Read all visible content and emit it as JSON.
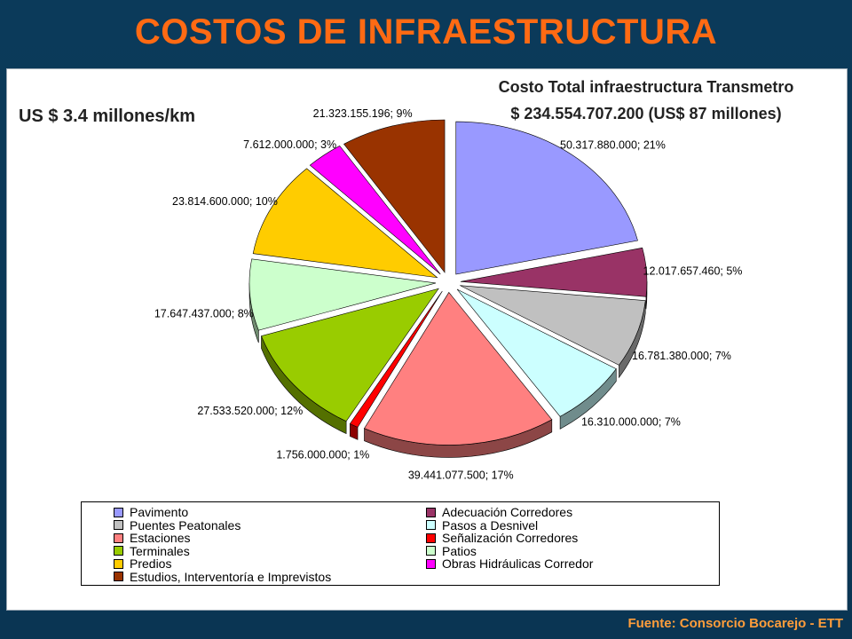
{
  "header": {
    "title": "COSTOS DE INFRAESTRUCTURA",
    "total_label": "Costo Total infraestructura Transmetro",
    "total_value": "$ 234.554.707.200  (US$ 87 millones)",
    "per_km": "US $ 3.4 millones/km"
  },
  "footer": {
    "source": "Fuente: Consorcio Bocarejo - ETT"
  },
  "chart_data": {
    "type": "pie",
    "title": "",
    "slices": [
      {
        "name": "Pavimento",
        "value": 50317880000,
        "percent": 21,
        "label": "50.317.880.000; 21%",
        "color": "#9999ff"
      },
      {
        "name": "Adecuación Corredores",
        "value": 12017657460,
        "percent": 5,
        "label": "12.017.657.460; 5%",
        "color": "#993366"
      },
      {
        "name": "Puentes Peatonales",
        "value": 16781380000,
        "percent": 7,
        "label": "16.781.380.000; 7%",
        "color": "#c0c0c0"
      },
      {
        "name": "Pasos a Desnivel",
        "value": 16310000000,
        "percent": 7,
        "label": "16.310.000.000; 7%",
        "color": "#ccffff"
      },
      {
        "name": "Estaciones",
        "value": 39441077500,
        "percent": 17,
        "label": "39.441.077.500; 17%",
        "color": "#ff8080"
      },
      {
        "name": "Señalización Corredores",
        "value": 1756000000,
        "percent": 1,
        "label": "1.756.000.000; 1%",
        "color": "#ff0000"
      },
      {
        "name": "Terminales",
        "value": 27533520000,
        "percent": 12,
        "label": "27.533.520.000; 12%",
        "color": "#99cc00"
      },
      {
        "name": "Patios",
        "value": 17647437000,
        "percent": 8,
        "label": "17.647.437.000; 8%",
        "color": "#ccffcc"
      },
      {
        "name": "Predios",
        "value": 23814600000,
        "percent": 10,
        "label": "23.814.600.000; 10%",
        "color": "#ffcc00"
      },
      {
        "name": "Obras Hidráulicas Corredor",
        "value": 7612000000,
        "percent": 3,
        "label": "7.612.000.000; 3%",
        "color": "#ff00ff"
      },
      {
        "name": "Estudios, Interventoría e Imprevistos",
        "value": 21323155196,
        "percent": 9,
        "label": "21.323.155.196; 9%",
        "color": "#993300"
      }
    ],
    "legend_placement": "bottom",
    "exploded": true,
    "style": "3d"
  }
}
